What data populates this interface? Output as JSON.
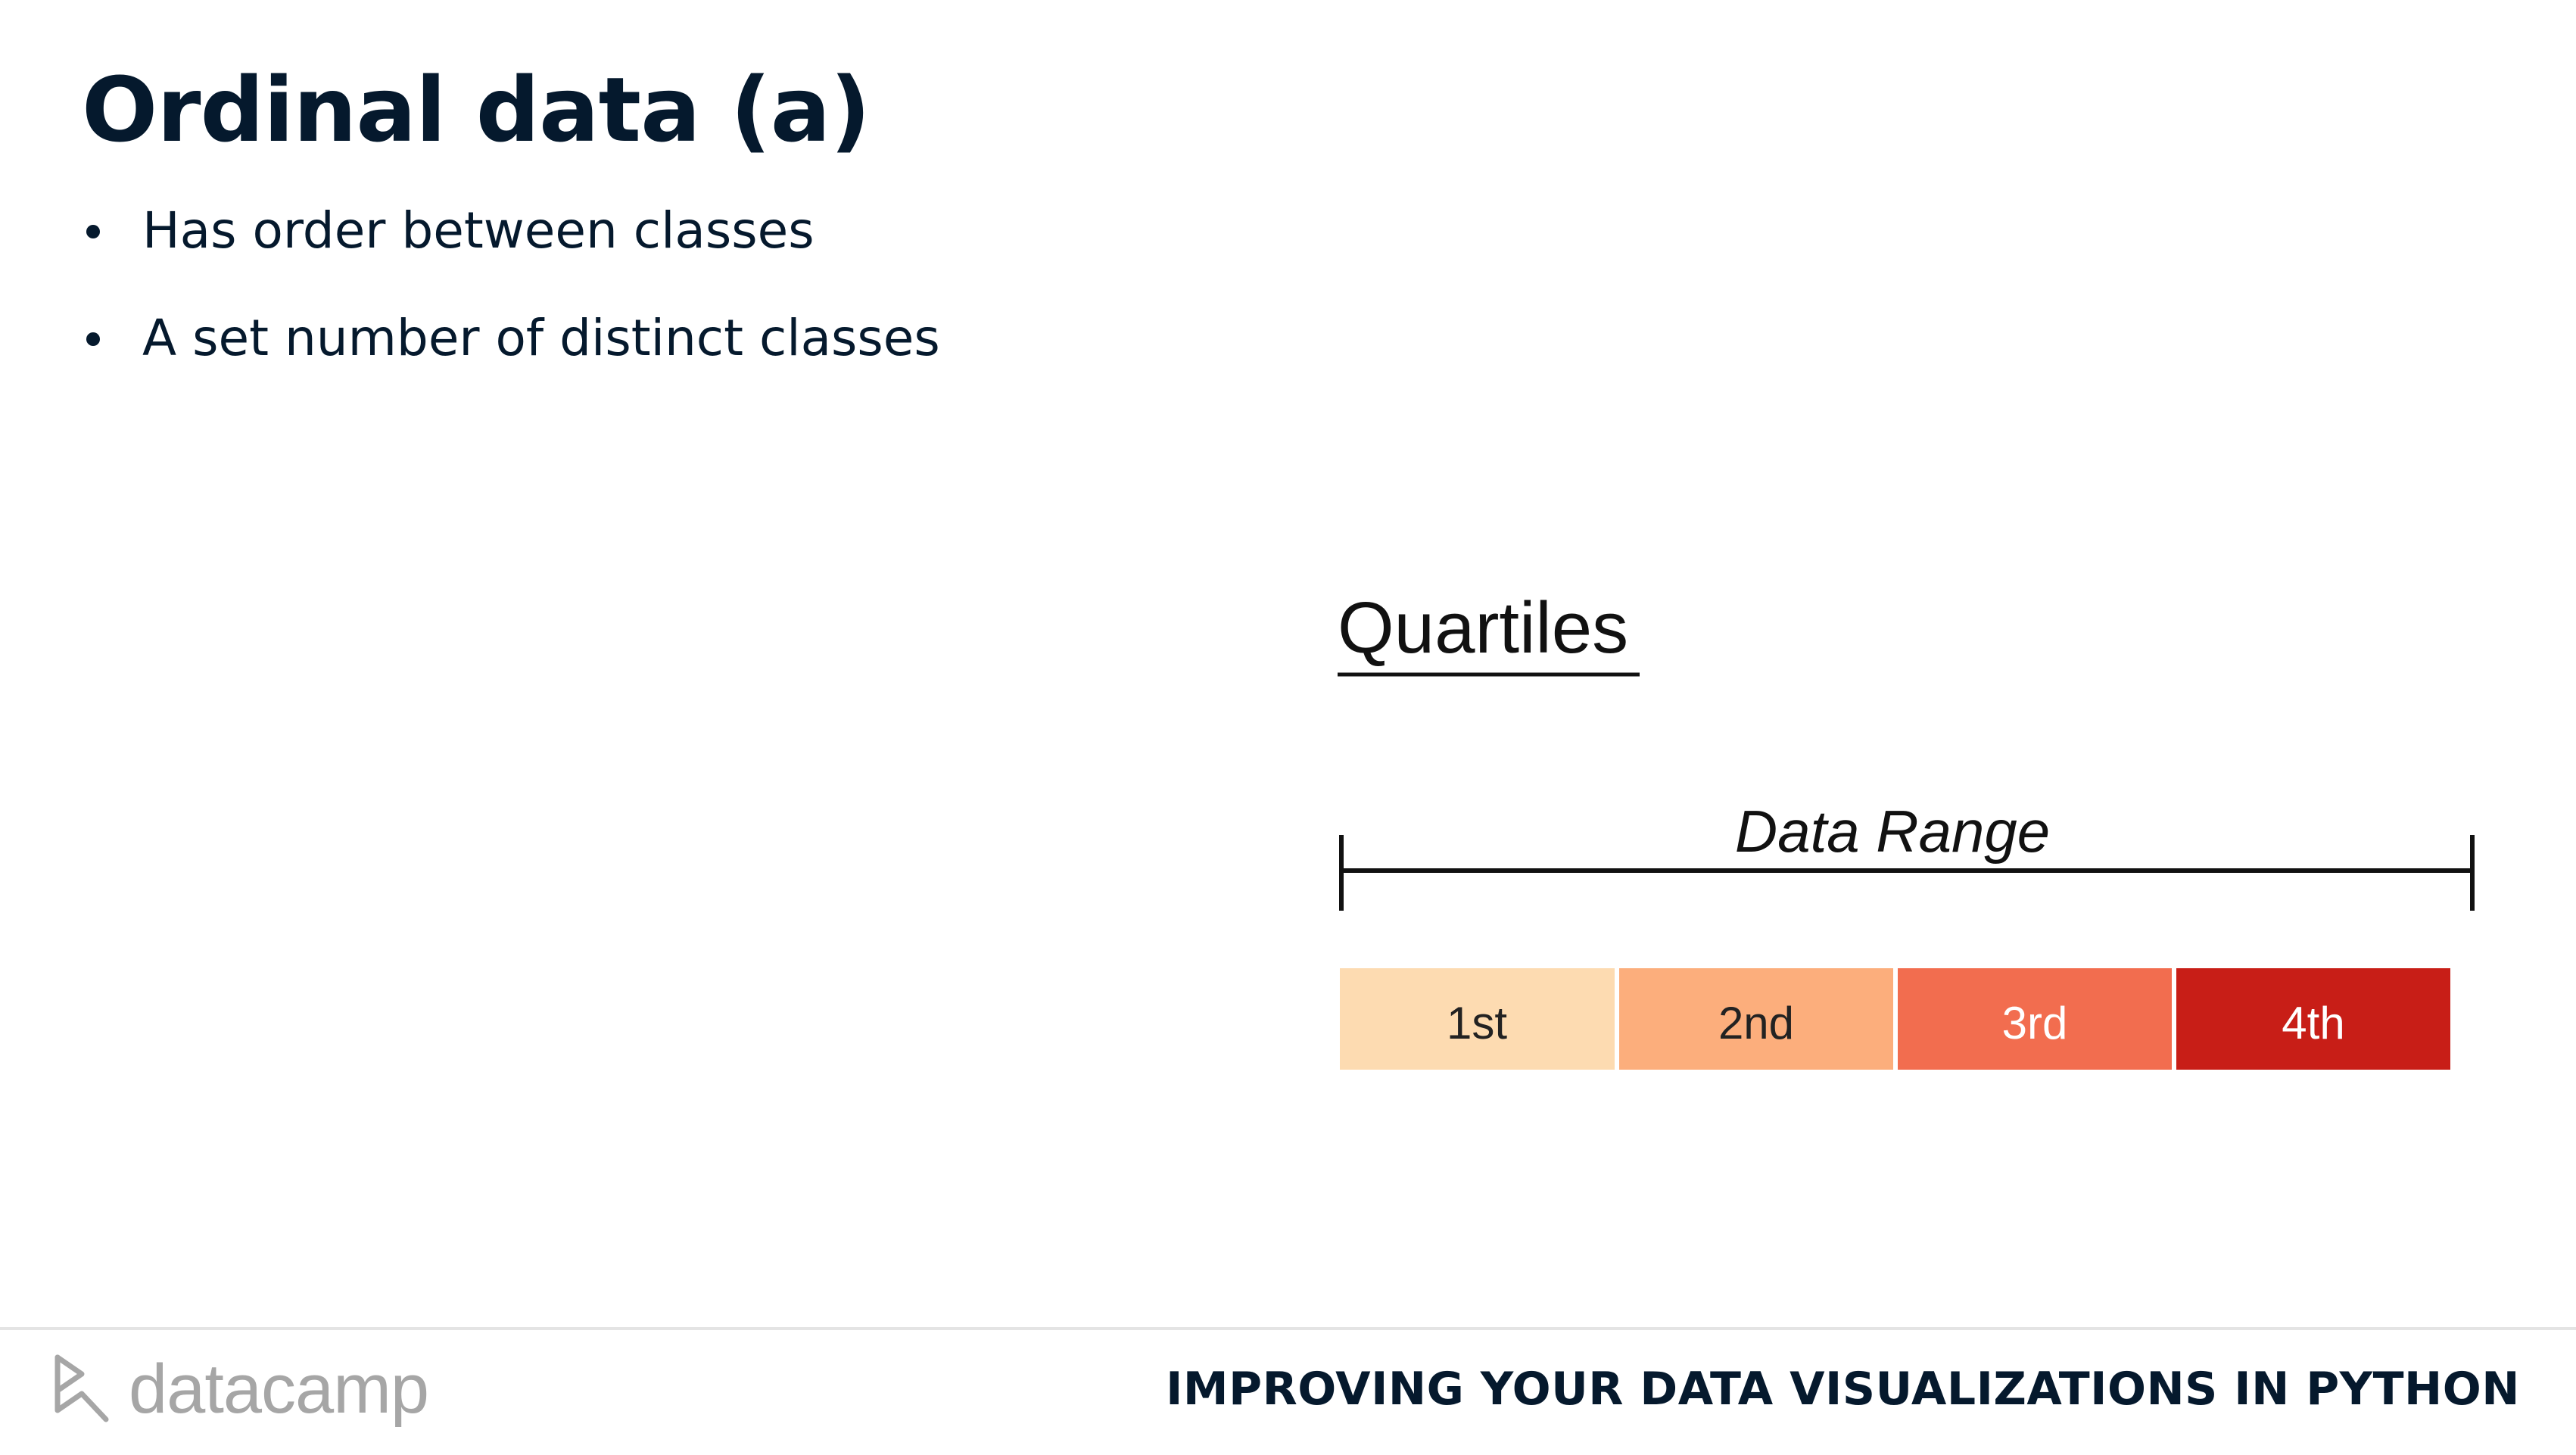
{
  "slide": {
    "title": "Ordinal data (a)",
    "bullets": [
      "Has order between classes",
      "A set number of distinct classes"
    ]
  },
  "diagram": {
    "heading": "Quartiles",
    "range_label": "Data Range",
    "segments": [
      {
        "label": "1st",
        "color": "#fddbb1",
        "text_color": "#222222"
      },
      {
        "label": "2nd",
        "color": "#fcae7c",
        "text_color": "#222222"
      },
      {
        "label": "3rd",
        "color": "#f26d4f",
        "text_color": "#ffffff"
      },
      {
        "label": "4th",
        "color": "#c81e17",
        "text_color": "#ffffff"
      }
    ]
  },
  "footer": {
    "logo_text": "datacamp",
    "course_title": "IMPROVING YOUR DATA VISUALIZATIONS IN PYTHON"
  },
  "colors": {
    "title": "#05192d",
    "rule": "#e4e4e4",
    "logo": "#a6a6a6"
  }
}
